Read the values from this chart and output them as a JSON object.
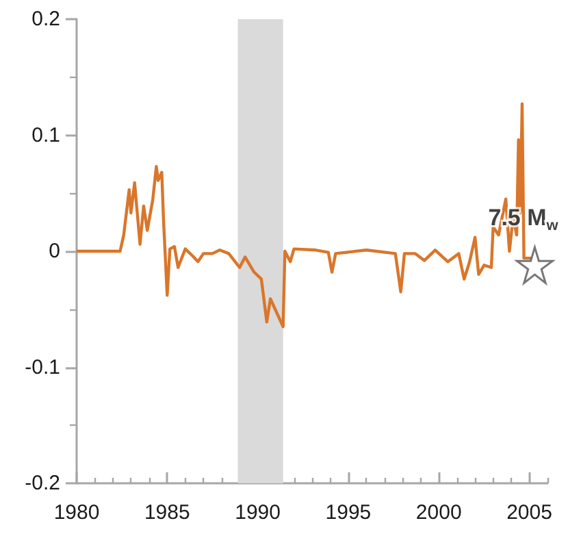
{
  "chart_data": {
    "type": "line",
    "xlim": [
      1980,
      2006
    ],
    "xticks": [
      1980,
      1985,
      1990,
      1995,
      2000,
      2005
    ],
    "ylim": [
      -0.2,
      0.2
    ],
    "yticks": [
      -0.2,
      -0.1,
      0,
      0.1,
      0.2
    ],
    "grid": false,
    "bands": [
      {
        "axis": "x",
        "from": 1988.9,
        "to": 1991.4,
        "color": "#dadada"
      }
    ],
    "annotations": [
      {
        "text": "7.5 M$_{w}$",
        "x": 2005.3,
        "y": -0.012
      }
    ],
    "series": [
      {
        "color": "#d9762b",
        "marker": "none",
        "line_style": "solid",
        "x": [
          1980,
          1982.4,
          1982.6,
          1982.9,
          1983.0,
          1983.2,
          1983.5,
          1983.7,
          1983.9,
          1984.2,
          1984.4,
          1984.5,
          1984.7,
          1984.8,
          1985.0,
          1985.15,
          1985.4,
          1985.6,
          1986.0,
          1986.4,
          1986.7,
          1987.0,
          1987.5,
          1987.9,
          1988.4,
          1989.0,
          1989.3,
          1989.8,
          1990.2,
          1990.5,
          1990.7,
          1991.4,
          1991.5,
          1991.8,
          1992.0,
          1993.2,
          1993.9,
          1994.1,
          1994.3,
          1996.0,
          1997.6,
          1997.9,
          1998.1,
          1998.7,
          1999.2,
          1999.8,
          2000.5,
          2001.1,
          2001.4,
          2001.7,
          2002.0,
          2002.2,
          2002.5,
          2002.9,
          2003.0,
          2003.3,
          2003.7,
          2003.9,
          2004.1,
          2004.3,
          2004.4,
          2004.5,
          2004.6,
          2004.7,
          2005.1
        ],
        "values": [
          0,
          0,
          0.014,
          0.053,
          0.033,
          0.059,
          0.006,
          0.039,
          0.018,
          0.044,
          0.073,
          0.061,
          0.068,
          0.026,
          -0.038,
          0.002,
          0.004,
          -0.014,
          0.002,
          -0.004,
          -0.009,
          -0.002,
          -0.002,
          0.001,
          -0.002,
          -0.014,
          -0.005,
          -0.018,
          -0.024,
          -0.061,
          -0.041,
          -0.065,
          0,
          -0.009,
          0.002,
          0.001,
          -0.001,
          -0.018,
          -0.002,
          0.001,
          -0.002,
          -0.035,
          -0.002,
          -0.002,
          -0.008,
          0.001,
          -0.009,
          -0.002,
          -0.024,
          -0.009,
          0.012,
          -0.02,
          -0.012,
          -0.014,
          0.021,
          0.014,
          0.045,
          0,
          0.029,
          0.014,
          0.096,
          0.033,
          0.127,
          -0.006,
          -0.006
        ]
      },
      {
        "type": "scatter",
        "color": "#555555",
        "marker": "star",
        "x": [
          2005.3
        ],
        "values": [
          -0.012
        ]
      }
    ]
  }
}
